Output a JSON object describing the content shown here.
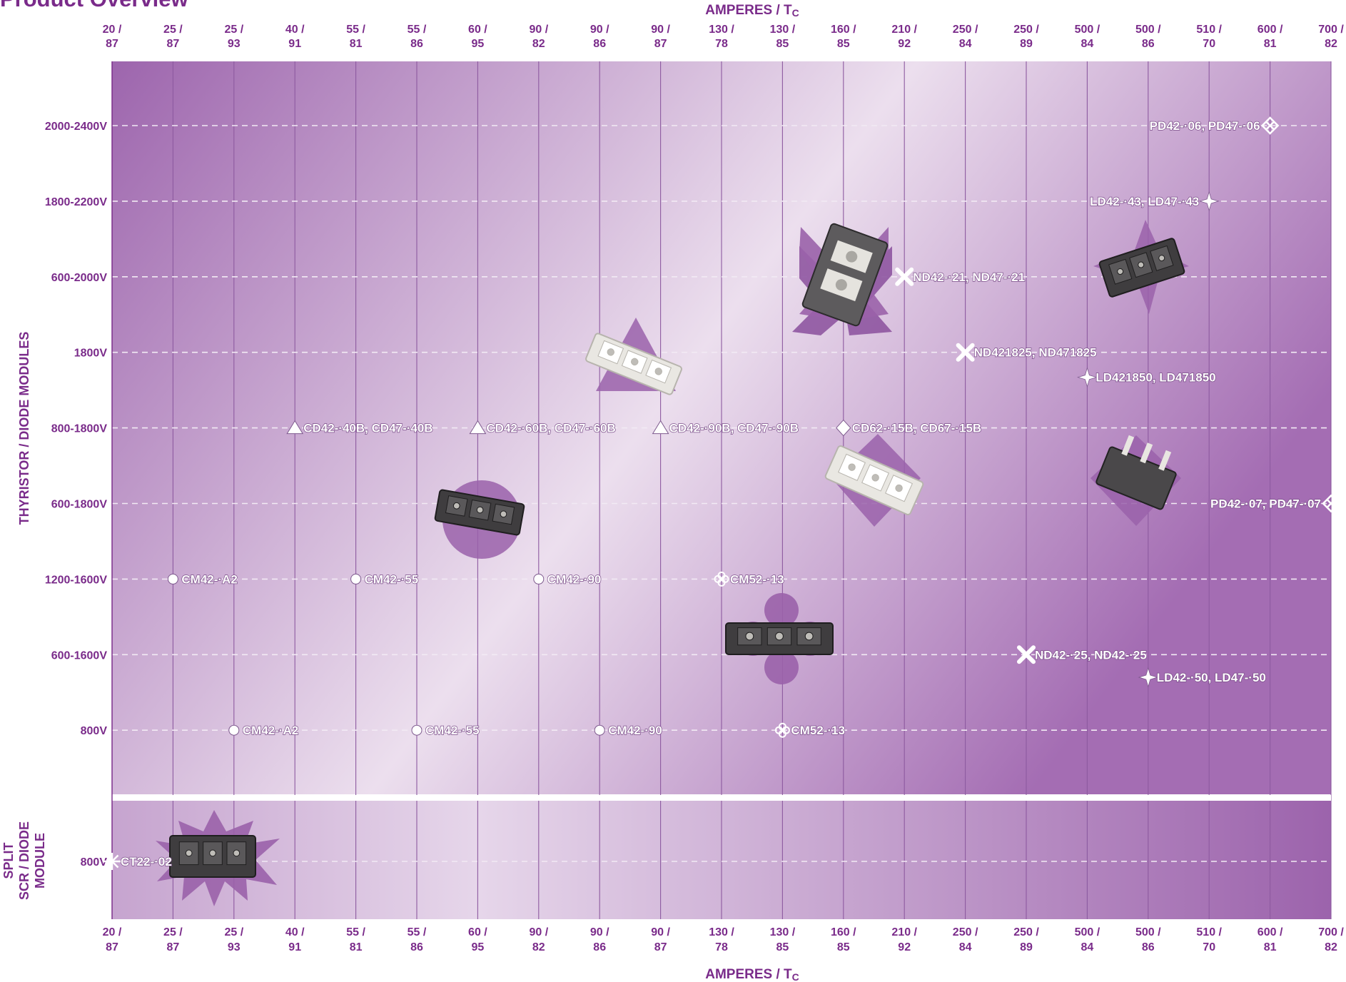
{
  "page_title": "Product Overview",
  "colors": {
    "brand_purple": "#7a2b8a",
    "bg_dark": "#9d65ad",
    "bg_light": "#ecdfee",
    "marker_white": "#ffffff"
  },
  "chart_data": {
    "type": "scatter",
    "x_axis": {
      "title": "AMPERES / Tc",
      "title_main": "AMPERES / T",
      "title_sub": "C",
      "ticks": [
        {
          "a": "20 /",
          "t": "87"
        },
        {
          "a": "25 /",
          "t": "87"
        },
        {
          "a": "25 /",
          "t": "93"
        },
        {
          "a": "40 /",
          "t": "91"
        },
        {
          "a": "55 /",
          "t": "81"
        },
        {
          "a": "55 /",
          "t": "86"
        },
        {
          "a": "60 /",
          "t": "95"
        },
        {
          "a": "90 /",
          "t": "82"
        },
        {
          "a": "90 /",
          "t": "86"
        },
        {
          "a": "90 /",
          "t": "87"
        },
        {
          "a": "130 /",
          "t": "78"
        },
        {
          "a": "130 /",
          "t": "85"
        },
        {
          "a": "160 /",
          "t": "85"
        },
        {
          "a": "210 /",
          "t": "92"
        },
        {
          "a": "250 /",
          "t": "84"
        },
        {
          "a": "250 /",
          "t": "89"
        },
        {
          "a": "500 /",
          "t": "84"
        },
        {
          "a": "500 /",
          "t": "86"
        },
        {
          "a": "510 /",
          "t": "70"
        },
        {
          "a": "600 /",
          "t": "81"
        },
        {
          "a": "700 /",
          "t": "82"
        }
      ],
      "grid": true
    },
    "panels": [
      {
        "title": "THYRISTOR / DIODE MODULES",
        "y_categories": [
          "2000-2400V",
          "1800-2200V",
          "600-2000V",
          "1800V",
          "800-1800V",
          "600-1800V",
          "1200-1600V",
          "600-1600V",
          "800V"
        ],
        "grid": true
      },
      {
        "title_lines": [
          "SPLIT",
          "SCR / DIODE",
          "MODULE"
        ],
        "y_categories": [
          "800V"
        ],
        "grid": true
      }
    ],
    "points": [
      {
        "panel": 0,
        "x": "600 / 81",
        "y": "2000-2400V",
        "marker": "diamond-x",
        "label": "PD42-·06, PD47-·06",
        "label_side": "left"
      },
      {
        "panel": 0,
        "x": "510 / 70",
        "y": "1800-2200V",
        "marker": "star4",
        "label": "LD42-·43, LD47-·43",
        "label_side": "left"
      },
      {
        "panel": 0,
        "x": "210 / 92",
        "y": "600-2000V",
        "marker": "x",
        "label": "ND42-·21, ND47-·21",
        "label_side": "right"
      },
      {
        "panel": 0,
        "x": "250 / 84",
        "y": "1800V",
        "marker": "x",
        "label": "ND421825, ND471825",
        "label_side": "right"
      },
      {
        "panel": 0,
        "x": "500 / 84",
        "y": "1800V",
        "marker": "star4",
        "label": "LD421850, LD471850",
        "label_side": "right",
        "y_offset": 0.33
      },
      {
        "panel": 0,
        "x": "40 / 91",
        "y": "800-1800V",
        "marker": "triangle",
        "label": "CD42-·40B, CD47-·40B",
        "label_side": "right"
      },
      {
        "panel": 0,
        "x": "60 / 95",
        "y": "800-1800V",
        "marker": "triangle",
        "label": "CD42-·60B, CD47-·60B",
        "label_side": "right"
      },
      {
        "panel": 0,
        "x": "90 / 87",
        "y": "800-1800V",
        "marker": "triangle",
        "label": "CD42-·90B, CD47-·90B",
        "label_side": "right"
      },
      {
        "panel": 0,
        "x": "160 / 85",
        "y": "800-1800V",
        "marker": "diamond",
        "label": "CD62-·15B, CD67-·15B",
        "label_side": "right"
      },
      {
        "panel": 0,
        "x": "700 / 82",
        "y": "600-1800V",
        "marker": "diamond-x",
        "label": "PD42-·07, PD47-·07",
        "label_side": "left"
      },
      {
        "panel": 0,
        "x": "25 / 87",
        "y": "1200-1600V",
        "marker": "circle",
        "label": "CM42-·A2",
        "label_side": "right"
      },
      {
        "panel": 0,
        "x": "55 / 81",
        "y": "1200-1600V",
        "marker": "circle",
        "label": "CM42-·55",
        "label_side": "right"
      },
      {
        "panel": 0,
        "x": "90 / 82",
        "y": "1200-1600V",
        "marker": "circle",
        "label": "CM42-·90",
        "label_side": "right"
      },
      {
        "panel": 0,
        "x": "130 / 78",
        "y": "1200-1600V",
        "marker": "clover",
        "label": "CM52-·13",
        "label_side": "right"
      },
      {
        "panel": 0,
        "x": "250 / 89",
        "y": "600-1600V",
        "marker": "x",
        "label": "ND42-·25, ND42-·25",
        "label_side": "right"
      },
      {
        "panel": 0,
        "x": "500 / 86",
        "y": "600-1600V",
        "marker": "star4",
        "label": "LD42-·50, LD47-·50",
        "label_side": "right",
        "y_offset": 0.3
      },
      {
        "panel": 0,
        "x": "25 / 93",
        "y": "800V",
        "marker": "circle",
        "label": "CM42-·A2",
        "label_side": "right"
      },
      {
        "panel": 0,
        "x": "55 / 86",
        "y": "800V",
        "marker": "circle",
        "label": "CM42-·55",
        "label_side": "right"
      },
      {
        "panel": 0,
        "x": "90 / 86",
        "y": "800V",
        "marker": "circle",
        "label": "CM42-·90",
        "label_side": "right"
      },
      {
        "panel": 0,
        "x": "130 / 85",
        "y": "800V",
        "marker": "clover",
        "label": "CM52-·13",
        "label_side": "right"
      },
      {
        "panel": 1,
        "x": "20 / 87",
        "y": "800V",
        "marker": "starburst",
        "label": "CT22-·02",
        "label_side": "right"
      }
    ]
  }
}
